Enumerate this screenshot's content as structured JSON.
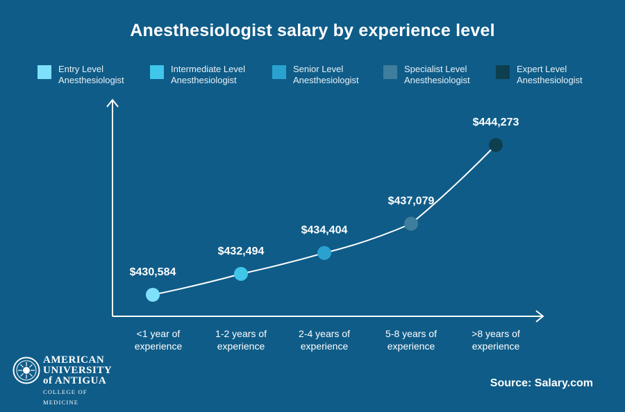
{
  "chart_data": {
    "type": "line",
    "title": "Anesthesiologist salary by experience level",
    "categories": [
      "<1 year of experience",
      "1-2 years of experience",
      "2-4 years of experience",
      "5-8 years of experience",
      ">8 years of experience"
    ],
    "category_lines": [
      [
        "<1 year of",
        "experience"
      ],
      [
        "1-2 years of",
        "experience"
      ],
      [
        "2-4 years of",
        "experience"
      ],
      [
        "5-8 years of",
        "experience"
      ],
      [
        ">8 years of",
        "experience"
      ]
    ],
    "values": [
      430584,
      432494,
      434404,
      437079,
      444273
    ],
    "value_labels": [
      "$430,584",
      "$432,494",
      "$434,404",
      "$437,079",
      "$444,273"
    ],
    "point_colors": [
      "#7ee0fa",
      "#3fc6e9",
      "#2aa2cf",
      "#3f7e9c",
      "#0e3f4f"
    ],
    "legend_position": "top",
    "grid": false
  },
  "legend": [
    {
      "label": "Entry Level\nAnesthesiologist",
      "color": "#7ee0fa"
    },
    {
      "label": "Intermediate Level\nAnesthesiologist",
      "color": "#3fc6e9"
    },
    {
      "label": "Senior Level\nAnesthesiologist",
      "color": "#2aa2cf"
    },
    {
      "label": "Specialist Level\nAnesthesiologist",
      "color": "#3f7e9c"
    },
    {
      "label": "Expert Level\nAnesthesiologist",
      "color": "#0e3f4f"
    }
  ],
  "source": "Source: Salary.com",
  "logo": {
    "line1": "AMERICAN",
    "line2": "UNIVERSITY",
    "line3": "of ANTIGUA",
    "line4": "COLLEGE OF MEDICINE"
  },
  "colors": {
    "background": "#0f5c88",
    "axis": "#ffffff",
    "line": "#ffffff"
  }
}
